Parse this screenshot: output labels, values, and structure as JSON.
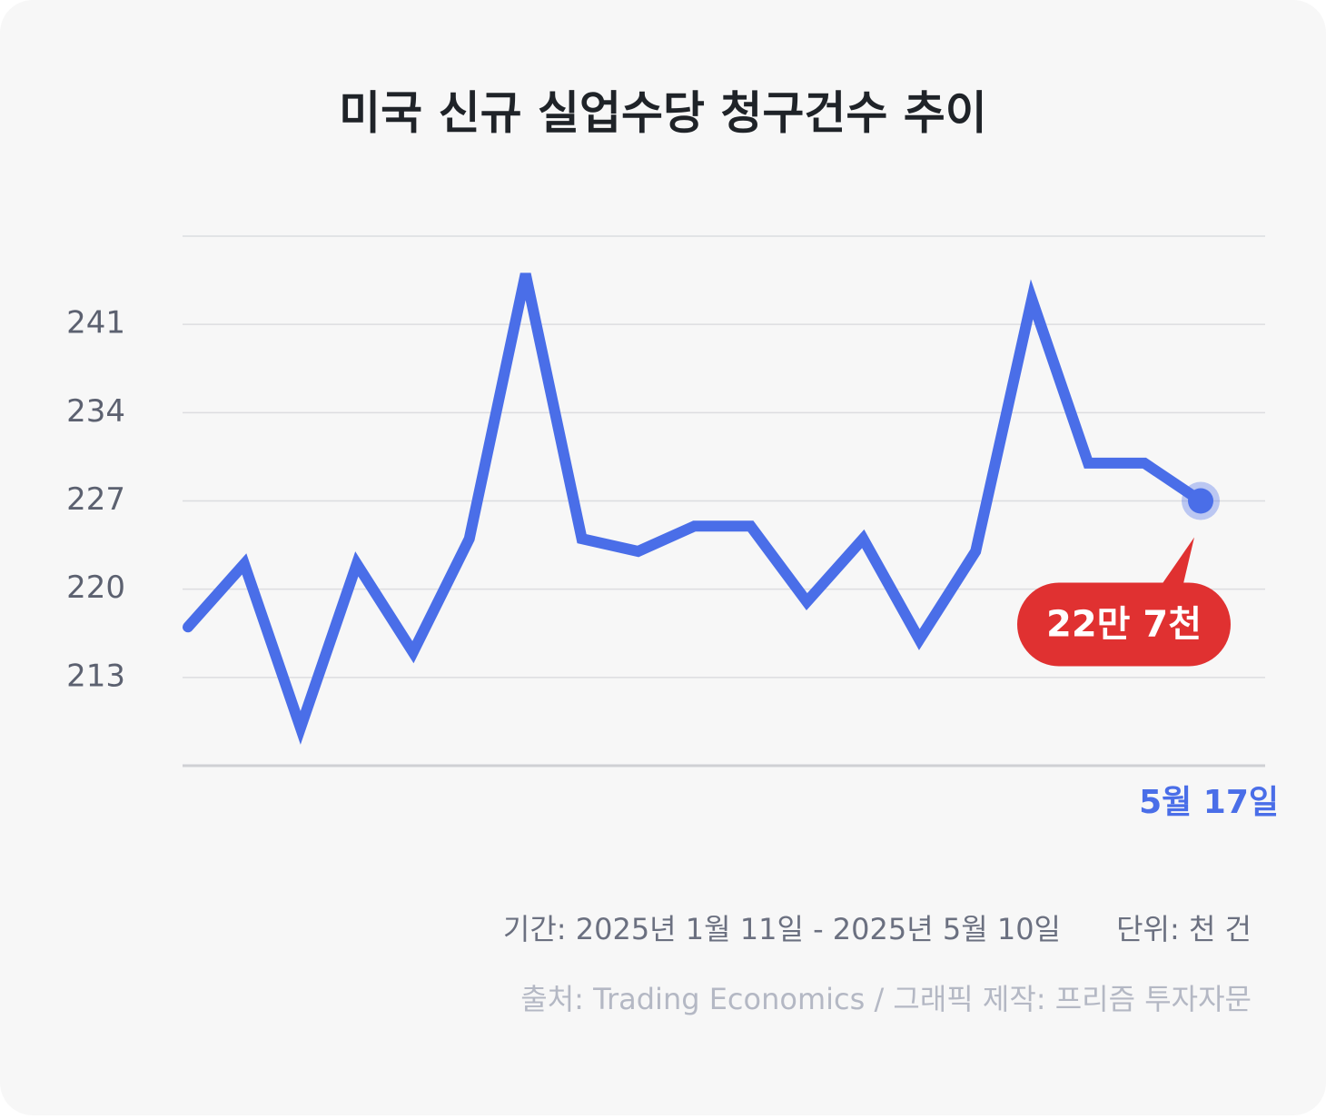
{
  "chart_data": {
    "type": "line",
    "title": "미국 신규 실업수당 청구건수 추이",
    "categories": [
      null,
      null,
      null,
      null,
      null,
      null,
      null,
      null,
      null,
      null,
      null,
      null,
      null,
      null,
      null,
      null,
      null,
      null,
      "5월 17일"
    ],
    "series": [
      {
        "color": "#4a6ee8",
        "values": [
          217,
          222,
          209,
          222,
          215,
          224,
          245,
          224,
          223,
          225,
          225,
          219,
          224,
          216,
          223,
          243,
          230,
          230,
          227
        ],
        "value_labels": [
          null,
          null,
          null,
          null,
          null,
          null,
          null,
          null,
          null,
          null,
          null,
          null,
          null,
          null,
          null,
          null,
          null,
          null,
          "22만 7천"
        ]
      }
    ],
    "ylim": [
      206,
      248
    ],
    "yticks": [
      213,
      220,
      227,
      234,
      241
    ],
    "grid": true,
    "period": "기간: 2025년 1월 11일 - 2025년 5월 10일",
    "unit": "단위: 천 건",
    "source": "출처: Trading Economics / 그래픽 제작: 프리즘 투자자문"
  }
}
